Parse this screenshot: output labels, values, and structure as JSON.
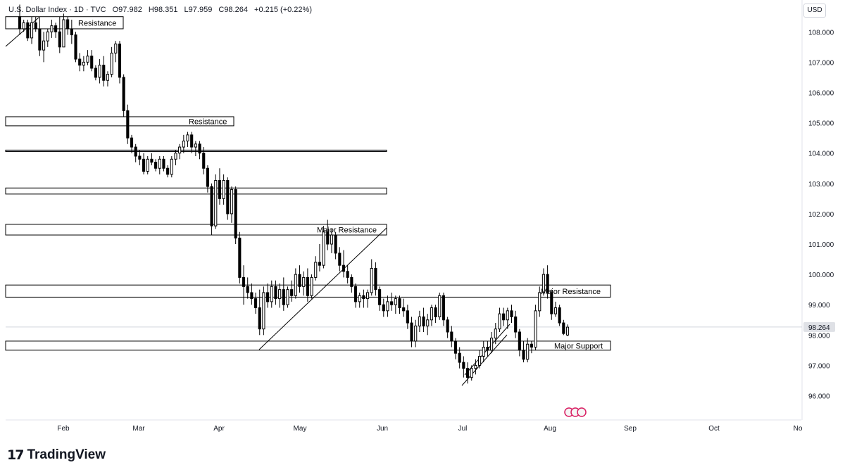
{
  "header": {
    "symbol": "U.S. Dollar Index · 1D · TVC",
    "open": "O97.982",
    "high": "H98.351",
    "low": "L97.959",
    "close": "C98.264",
    "change": "+0.215 (+0.22%)"
  },
  "currency": "USD",
  "brand": {
    "logo": "17",
    "name": "TradingView"
  },
  "chart_data": {
    "type": "candlestick",
    "x_labels": [
      "Feb",
      "Mar",
      "Apr",
      "May",
      "Jun",
      "Jul",
      "Aug",
      "Sep",
      "Oct",
      "No"
    ],
    "y_ticks": [
      "108.000",
      "107.000",
      "106.000",
      "105.000",
      "104.000",
      "103.000",
      "102.000",
      "101.000",
      "100.000",
      "99.000",
      "98.000",
      "97.000",
      "96.000"
    ],
    "ylim": [
      95.2,
      109.05
    ],
    "last_price": "98.264",
    "colors": {
      "bull": "#ffffff",
      "bear": "#000000",
      "outline": "#000000",
      "grid_line": "#b2b5be"
    },
    "zones": [
      {
        "label": "Resistance",
        "top": 108.5,
        "bottom": 108.1
      },
      {
        "label": "Resistance",
        "top": 105.2,
        "bottom": 104.9
      },
      {
        "label": "",
        "top": 104.1,
        "bottom": 104.05
      },
      {
        "label": "",
        "top": 102.85,
        "bottom": 102.65
      },
      {
        "label": "Major Resistance",
        "top": 101.65,
        "bottom": 101.3
      },
      {
        "label": "Major Resistance",
        "top": 99.65,
        "bottom": 99.25
      },
      {
        "label": "Major Support",
        "top": 97.8,
        "bottom": 97.5
      }
    ],
    "trendlines": [
      {
        "from": [
          "Jan",
          107.6
        ],
        "to": [
          "Feb",
          108.6
        ]
      },
      {
        "from": [
          "Apr",
          97.6
        ],
        "to": [
          "May",
          101.6
        ]
      },
      {
        "from": [
          "Jun",
          96.4
        ],
        "to": [
          "Jul",
          98.3
        ]
      }
    ],
    "candles": [
      [
        108.5,
        108.9,
        107.9,
        108.1
      ],
      [
        108.1,
        108.4,
        108.0,
        108.3
      ],
      [
        108.3,
        108.4,
        107.7,
        107.8
      ],
      [
        107.8,
        108.5,
        107.6,
        108.3
      ],
      [
        108.3,
        108.5,
        108.0,
        108.1
      ],
      [
        108.1,
        108.5,
        107.2,
        107.4
      ],
      [
        107.4,
        108.0,
        107.0,
        107.7
      ],
      [
        107.7,
        108.1,
        107.5,
        108.0
      ],
      [
        108.0,
        108.4,
        107.8,
        108.2
      ],
      [
        108.2,
        108.3,
        107.8,
        108.0
      ],
      [
        108.0,
        108.5,
        107.3,
        107.5
      ],
      [
        107.5,
        108.6,
        107.5,
        108.4
      ],
      [
        108.4,
        108.5,
        107.9,
        108.1
      ],
      [
        108.1,
        108.4,
        107.6,
        107.9
      ],
      [
        107.9,
        108.0,
        107.0,
        107.1
      ],
      [
        107.1,
        107.3,
        106.7,
        106.9
      ],
      [
        106.9,
        107.2,
        106.7,
        107.0
      ],
      [
        107.0,
        107.4,
        106.9,
        107.2
      ],
      [
        107.2,
        107.4,
        106.7,
        106.8
      ],
      [
        106.8,
        106.9,
        106.4,
        106.5
      ],
      [
        106.5,
        107.1,
        106.3,
        106.9
      ],
      [
        106.9,
        107.2,
        106.2,
        106.4
      ],
      [
        106.4,
        106.7,
        106.2,
        106.6
      ],
      [
        106.6,
        107.5,
        106.5,
        107.3
      ],
      [
        107.3,
        107.7,
        107.0,
        107.6
      ],
      [
        107.6,
        107.7,
        106.3,
        106.5
      ],
      [
        106.5,
        106.6,
        105.2,
        105.4
      ],
      [
        105.4,
        105.6,
        104.3,
        104.5
      ],
      [
        104.5,
        104.6,
        104.0,
        104.2
      ],
      [
        104.2,
        104.3,
        103.7,
        103.9
      ],
      [
        103.9,
        104.1,
        103.6,
        103.8
      ],
      [
        103.8,
        104.0,
        103.3,
        103.4
      ],
      [
        103.4,
        103.9,
        103.3,
        103.8
      ],
      [
        103.8,
        104.0,
        103.6,
        103.7
      ],
      [
        103.7,
        103.8,
        103.4,
        103.5
      ],
      [
        103.5,
        103.9,
        103.3,
        103.8
      ],
      [
        103.8,
        103.9,
        103.4,
        103.5
      ],
      [
        103.5,
        103.6,
        103.2,
        103.3
      ],
      [
        103.3,
        103.9,
        103.2,
        103.8
      ],
      [
        103.8,
        104.1,
        103.6,
        104.0
      ],
      [
        104.0,
        104.3,
        103.8,
        104.2
      ],
      [
        104.2,
        104.6,
        104.0,
        104.4
      ],
      [
        104.4,
        104.7,
        104.2,
        104.6
      ],
      [
        104.6,
        104.7,
        104.0,
        104.2
      ],
      [
        104.2,
        104.4,
        103.9,
        104.3
      ],
      [
        104.3,
        104.4,
        103.8,
        104.0
      ],
      [
        104.0,
        104.2,
        103.3,
        103.5
      ],
      [
        103.5,
        103.6,
        102.7,
        102.9
      ],
      [
        102.9,
        103.0,
        101.3,
        101.6
      ],
      [
        101.6,
        103.3,
        101.5,
        103.1
      ],
      [
        103.1,
        103.5,
        102.3,
        102.5
      ],
      [
        102.5,
        103.3,
        102.3,
        103.1
      ],
      [
        103.1,
        103.2,
        101.8,
        102.0
      ],
      [
        102.0,
        102.9,
        101.7,
        102.8
      ],
      [
        102.8,
        102.9,
        101.0,
        101.2
      ],
      [
        101.2,
        101.4,
        99.7,
        99.9
      ],
      [
        99.9,
        100.3,
        99.0,
        99.6
      ],
      [
        99.6,
        99.9,
        99.2,
        99.4
      ],
      [
        99.4,
        99.7,
        99.0,
        99.2
      ],
      [
        99.2,
        99.4,
        98.7,
        98.9
      ],
      [
        98.9,
        99.5,
        98.0,
        98.2
      ],
      [
        98.2,
        99.6,
        98.0,
        99.4
      ],
      [
        99.4,
        99.7,
        98.9,
        99.1
      ],
      [
        99.1,
        99.8,
        98.9,
        99.6
      ],
      [
        99.6,
        99.8,
        99.0,
        99.2
      ],
      [
        99.2,
        99.7,
        98.9,
        99.5
      ],
      [
        99.5,
        99.9,
        98.8,
        99.0
      ],
      [
        99.0,
        99.6,
        98.9,
        99.5
      ],
      [
        99.5,
        99.8,
        99.1,
        99.3
      ],
      [
        99.3,
        100.2,
        99.2,
        100.0
      ],
      [
        100.0,
        100.3,
        99.4,
        99.6
      ],
      [
        99.6,
        100.1,
        99.3,
        99.9
      ],
      [
        99.9,
        100.2,
        99.1,
        99.3
      ],
      [
        99.3,
        100.0,
        99.2,
        99.9
      ],
      [
        99.9,
        100.6,
        99.8,
        100.4
      ],
      [
        100.4,
        101.0,
        100.1,
        100.3
      ],
      [
        100.3,
        101.6,
        100.2,
        101.4
      ],
      [
        101.4,
        101.8,
        100.8,
        101.0
      ],
      [
        101.0,
        101.5,
        100.7,
        101.3
      ],
      [
        101.3,
        101.4,
        100.5,
        100.7
      ],
      [
        100.7,
        100.9,
        100.1,
        100.3
      ],
      [
        100.3,
        100.8,
        99.9,
        100.1
      ],
      [
        100.1,
        100.3,
        99.7,
        99.9
      ],
      [
        99.9,
        100.0,
        99.4,
        99.6
      ],
      [
        99.6,
        99.7,
        98.9,
        99.1
      ],
      [
        99.1,
        99.4,
        98.9,
        99.3
      ],
      [
        99.3,
        99.5,
        98.9,
        99.2
      ],
      [
        99.2,
        99.5,
        98.9,
        99.4
      ],
      [
        99.4,
        100.5,
        99.3,
        100.2
      ],
      [
        100.2,
        100.4,
        99.3,
        99.5
      ],
      [
        99.5,
        99.6,
        98.8,
        99.0
      ],
      [
        99.0,
        99.2,
        98.6,
        98.8
      ],
      [
        98.8,
        99.3,
        98.6,
        99.1
      ],
      [
        99.1,
        99.4,
        98.8,
        99.0
      ],
      [
        99.0,
        99.3,
        98.7,
        99.2
      ],
      [
        99.2,
        99.3,
        98.7,
        98.9
      ],
      [
        98.9,
        99.2,
        98.6,
        98.8
      ],
      [
        98.8,
        99.0,
        98.2,
        98.4
      ],
      [
        98.4,
        98.6,
        97.6,
        97.8
      ],
      [
        97.8,
        98.5,
        97.6,
        98.3
      ],
      [
        98.3,
        98.8,
        98.1,
        98.6
      ],
      [
        98.6,
        98.9,
        98.1,
        98.3
      ],
      [
        98.3,
        98.7,
        98.0,
        98.5
      ],
      [
        98.5,
        99.0,
        98.3,
        98.9
      ],
      [
        98.9,
        99.0,
        98.4,
        98.6
      ],
      [
        98.6,
        99.4,
        98.5,
        99.3
      ],
      [
        99.3,
        99.4,
        98.3,
        98.5
      ],
      [
        98.5,
        98.6,
        97.9,
        98.1
      ],
      [
        98.1,
        98.3,
        97.6,
        97.8
      ],
      [
        97.8,
        97.9,
        97.2,
        97.4
      ],
      [
        97.4,
        97.6,
        96.9,
        97.1
      ],
      [
        97.1,
        97.3,
        96.6,
        96.9
      ],
      [
        96.9,
        97.1,
        96.4,
        96.6
      ],
      [
        96.6,
        97.0,
        96.5,
        96.9
      ],
      [
        96.9,
        97.2,
        96.7,
        97.0
      ],
      [
        97.0,
        97.5,
        96.9,
        97.3
      ],
      [
        97.3,
        97.8,
        97.1,
        97.6
      ],
      [
        97.6,
        97.8,
        97.3,
        97.5
      ],
      [
        97.5,
        98.1,
        97.4,
        97.9
      ],
      [
        97.9,
        98.4,
        97.7,
        98.2
      ],
      [
        98.2,
        98.9,
        98.1,
        98.7
      ],
      [
        98.7,
        98.9,
        98.3,
        98.5
      ],
      [
        98.5,
        98.9,
        98.2,
        98.8
      ],
      [
        98.8,
        99.0,
        98.4,
        98.6
      ],
      [
        98.6,
        98.8,
        97.9,
        98.1
      ],
      [
        98.1,
        98.2,
        97.3,
        97.5
      ],
      [
        97.5,
        97.8,
        97.1,
        97.2
      ],
      [
        97.2,
        97.9,
        97.1,
        97.7
      ],
      [
        97.7,
        97.8,
        97.4,
        97.6
      ],
      [
        97.6,
        99.0,
        97.5,
        98.8
      ],
      [
        98.8,
        99.6,
        98.6,
        99.4
      ],
      [
        99.4,
        100.2,
        99.3,
        100.0
      ],
      [
        100.0,
        100.3,
        99.2,
        99.4
      ],
      [
        99.4,
        99.5,
        98.5,
        98.7
      ],
      [
        98.7,
        99.1,
        98.6,
        98.9
      ],
      [
        98.9,
        99.0,
        98.3,
        98.4
      ],
      [
        98.4,
        98.5,
        98.0,
        98.05
      ],
      [
        98.0,
        98.35,
        97.96,
        98.26
      ]
    ]
  }
}
